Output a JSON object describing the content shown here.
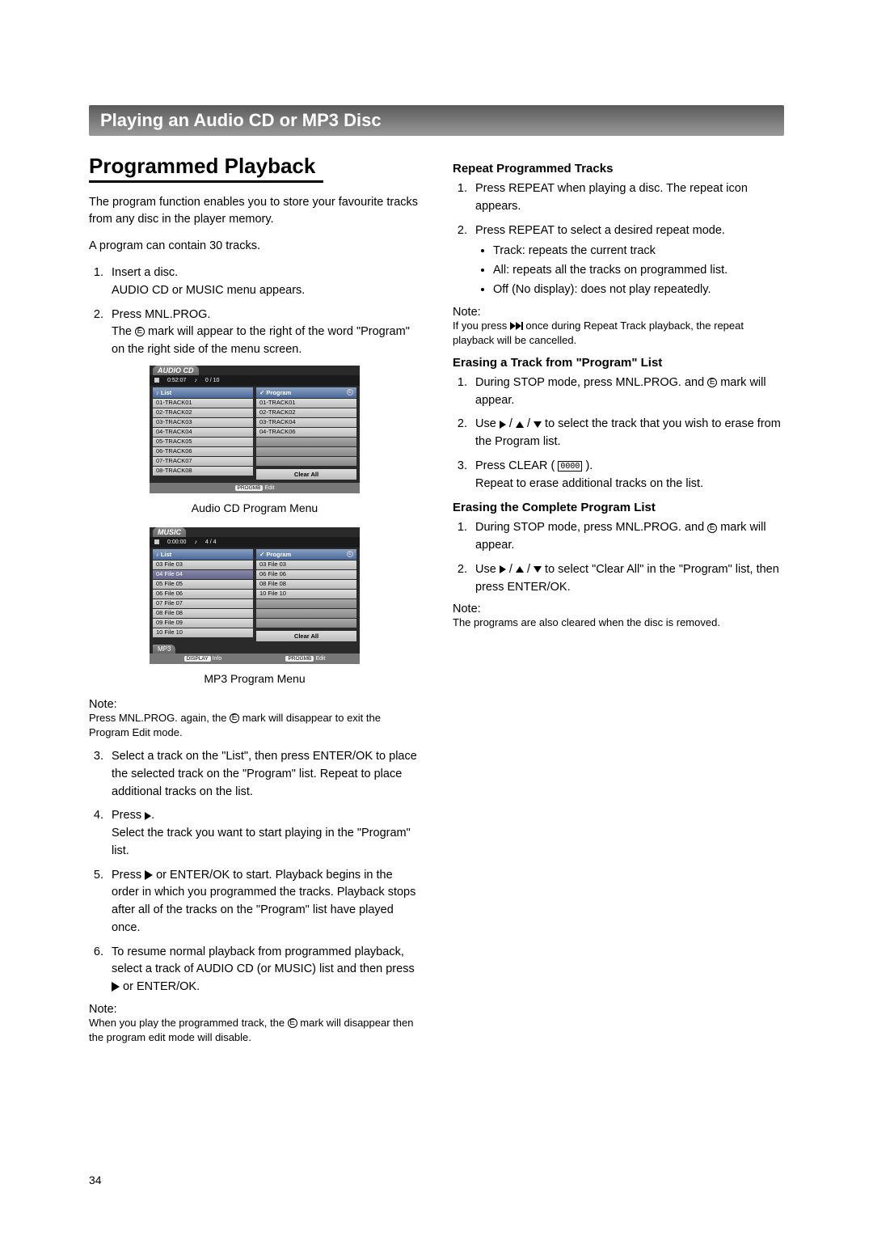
{
  "section_title": "Playing an Audio CD or MP3 Disc",
  "left": {
    "heading": "Programmed Playback",
    "intro1": "The program function enables you to store your favourite tracks from any disc in the player memory.",
    "intro2": "A program can contain 30 tracks.",
    "step1a": "Insert a disc.",
    "step1b": "AUDIO CD or MUSIC menu appears.",
    "step2a": "Press MNL.PROG.",
    "step2b_pre": "The ",
    "step2b_post": " mark will appear to the right of the word \"Program\" on the right side of the menu screen.",
    "caption1": "Audio CD Program Menu",
    "caption2": "MP3 Program Menu",
    "note1_label": "Note:",
    "note1_pre": "Press MNL.PROG. again, the ",
    "note1_post": " mark will disappear to exit the Program Edit mode.",
    "step3": "Select a track on the \"List\", then press ENTER/OK to place the selected track on the \"Program\" list. Repeat to place additional tracks on the list.",
    "step4a": "Press ",
    "step4b": "Select the track you want to start playing in the \"Program\" list.",
    "step5a": "Press ",
    "step5b": " or ENTER/OK to start. Playback begins in the order in which you programmed the tracks. Playback stops after all of the tracks on the \"Program\" list have played once.",
    "step6a": "To resume normal playback from programmed playback, select a track of AUDIO CD (or MUSIC) list and then press ",
    "step6b": " or ENTER/OK.",
    "note2_label": "Note:",
    "note2_pre": "When you play the programmed track, the ",
    "note2_post": " mark will disappear then the program edit mode will disable.",
    "menu1": {
      "title": "AUDIO CD",
      "time": "0:52:07",
      "counter": "0 / 10",
      "list_label": "List",
      "prog_label": "Program",
      "left_rows": [
        "01-TRACK01",
        "02-TRACK02",
        "03-TRACK03",
        "04-TRACK04",
        "05-TRACK05",
        "06-TRACK06",
        "07-TRACK07",
        "08-TRACK08"
      ],
      "right_rows": [
        "01-TRACK01",
        "02-TRACK02",
        "03-TRACK04",
        "04-TRACK06",
        "",
        "",
        ""
      ],
      "clear": "Clear All",
      "footer_pill": "PROGMB",
      "footer_txt": "Edit"
    },
    "menu2": {
      "title": "MUSIC",
      "time": "0:00:00",
      "counter": "4 / 4",
      "list_label": "List",
      "prog_label": "Program",
      "left_rows": [
        "03 File 03",
        "04 File 04",
        "05 File 05",
        "06 File 06",
        "07 File 07",
        "08 File 08",
        "09 File 09",
        "10 File 10"
      ],
      "right_rows": [
        "03 File 03",
        "06 File 06",
        "08 File 08",
        "10 File 10",
        "",
        "",
        ""
      ],
      "clear": "Clear All",
      "bottom_tab": "MP3",
      "footer_pill1": "DISPLAY",
      "footer_txt1": "Info",
      "footer_pill2": "PROGMB",
      "footer_txt2": "Edit"
    }
  },
  "right": {
    "h1": "Repeat Programmed Tracks",
    "r1_1": "Press REPEAT when playing a disc. The repeat icon appears.",
    "r1_2": "Press REPEAT to select a desired repeat mode.",
    "b1": "Track: repeats the current track",
    "b2": "All: repeats all the tracks on programmed list.",
    "b3": "Off (No display): does not play repeatedly.",
    "note1_label": "Note:",
    "note1_pre": "If you press ",
    "note1_post": " once during Repeat Track playback, the repeat playback will be cancelled.",
    "h2": "Erasing a Track from \"Program\" List",
    "r2_1_pre": "During STOP mode, press MNL.PROG. and ",
    "r2_1_post": " mark will appear.",
    "r2_2_pre": "Use ",
    "r2_2_post": " to select the track that you wish to erase from the Program list.",
    "r2_3a": "Press CLEAR ( ",
    "r2_3_btn": "0000",
    "r2_3b": " ).",
    "r2_3c": "Repeat to erase additional tracks on the list.",
    "h3": "Erasing the Complete Program List",
    "r3_1_pre": "During STOP mode, press MNL.PROG. and ",
    "r3_1_post": " mark will appear.",
    "r3_2_pre": "Use ",
    "r3_2_post": " to select \"Clear All\" in the \"Program\" list, then press ENTER/OK.",
    "note2_label": "Note:",
    "note2": "The programs are also cleared when the disc is removed."
  },
  "page_number": "34"
}
